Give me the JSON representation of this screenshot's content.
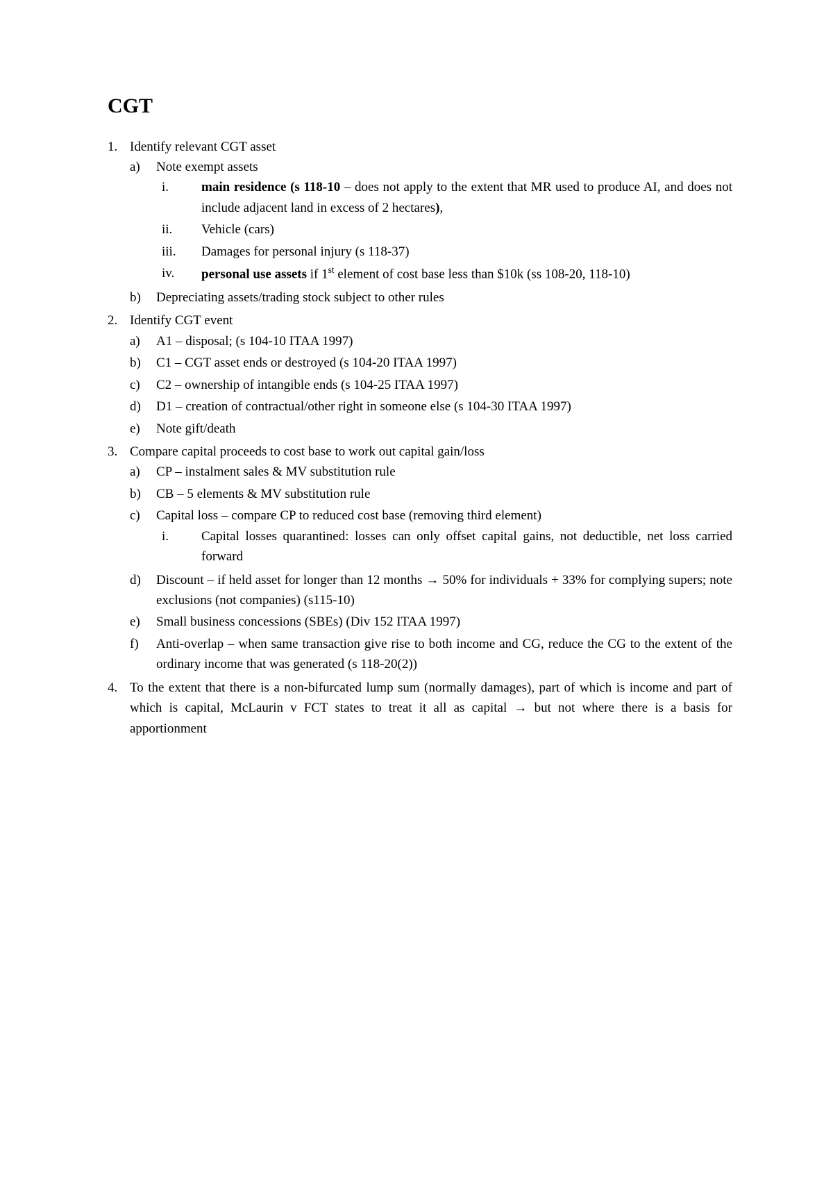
{
  "title": "CGT",
  "font_body_size": 19,
  "font_title_size": 30,
  "text_color": "#000000",
  "background_color": "#ffffff",
  "items": [
    {
      "marker": "1.",
      "text": "Identify relevant CGT asset",
      "sub": [
        {
          "marker": "a)",
          "text": "Note exempt assets",
          "sub": [
            {
              "marker": "i.",
              "html": "<span class=\"bold\">main residence (s 118-10</span> – does not apply to the extent that MR used to produce AI, and does not include adjacent land in excess of 2 hectares<span class=\"bold\">)</span>,"
            },
            {
              "marker": "ii.",
              "text": "Vehicle (cars)"
            },
            {
              "marker": "iii.",
              "text": "Damages for personal injury (s 118-37)"
            },
            {
              "marker": "iv.",
              "html": "<span class=\"bold\">personal use assets</span> if 1<sup>st</sup> element of cost base less than $10k (ss 108-20, 118-10)"
            }
          ]
        },
        {
          "marker": "b)",
          "text": "Depreciating assets/trading stock subject to other rules"
        }
      ]
    },
    {
      "marker": "2.",
      "text": "Identify CGT event",
      "sub": [
        {
          "marker": "a)",
          "text": "A1 – disposal; (s 104-10 ITAA 1997)"
        },
        {
          "marker": "b)",
          "text": "C1 – CGT asset ends or destroyed (s 104-20 ITAA 1997)"
        },
        {
          "marker": "c)",
          "text": "C2 – ownership of intangible ends (s 104-25 ITAA 1997)"
        },
        {
          "marker": "d)",
          "text": "D1 – creation of contractual/other right in someone else (s 104-30 ITAA 1997)"
        },
        {
          "marker": "e)",
          "text": "Note gift/death"
        }
      ]
    },
    {
      "marker": "3.",
      "text": "Compare capital proceeds to cost base to work out capital gain/loss",
      "sub": [
        {
          "marker": "a)",
          "text": "CP – instalment sales & MV substitution rule"
        },
        {
          "marker": "b)",
          "text": "CB – 5 elements & MV substitution rule"
        },
        {
          "marker": "c)",
          "text": "Capital loss – compare CP to reduced cost base (removing third element)",
          "sub": [
            {
              "marker": "i.",
              "text": "Capital losses quarantined: losses can only offset capital gains, not deductible, net loss carried forward"
            }
          ]
        },
        {
          "marker": "d)",
          "html": "Discount – if held asset for longer than 12 months → 50% for individuals + 33% for complying supers; note exclusions (not companies) (s115-10)"
        },
        {
          "marker": "e)",
          "text": "Small business concessions (SBEs) (Div 152 ITAA 1997)"
        },
        {
          "marker": "f)",
          "text": "Anti-overlap – when same transaction give rise to both income and CG, reduce the CG to the extent of the ordinary income that was generated (s 118-20(2))"
        }
      ]
    },
    {
      "marker": "4.",
      "html": "To the extent that there is a non-bifurcated lump sum (normally damages), part of which is income and part of which is capital, McLaurin v FCT states to treat it all as capital → but not where there is a basis for apportionment"
    }
  ]
}
